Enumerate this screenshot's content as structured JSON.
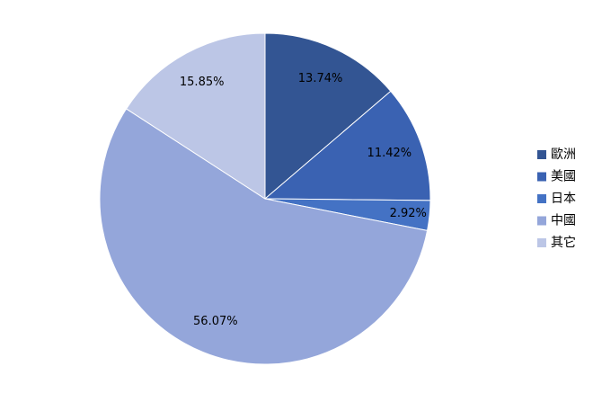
{
  "chart_data": {
    "type": "pie",
    "categories": [
      "歐洲",
      "美國",
      "日本",
      "中國",
      "其它"
    ],
    "values": [
      13.74,
      11.42,
      2.92,
      56.07,
      15.85
    ],
    "value_labels": [
      "13.74%",
      "11.42%",
      "2.92%",
      "56.07%",
      "15.85%"
    ],
    "colors": [
      "#335593",
      "#3a62b2",
      "#4472c4",
      "#94a6da",
      "#bcc6e6"
    ],
    "legend": "right"
  }
}
